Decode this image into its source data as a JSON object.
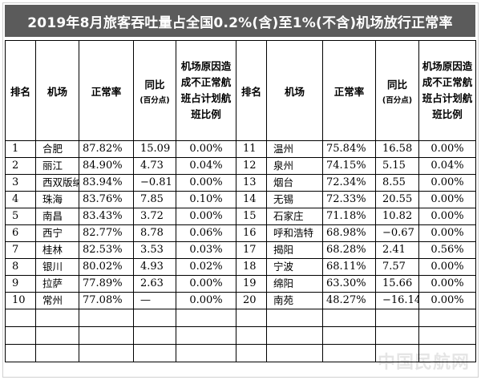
{
  "title": "2019年8月旅客吞吐量占全国0.2%(含)至1%(不含)机场放行正常率",
  "headers": {
    "rank": "排名",
    "airport": "机场",
    "rate": "正常率",
    "yoy": "同比",
    "yoy_unit": "(百分点)",
    "ratio": "机场原因造成不正常航班占计划航班比例"
  },
  "rows": [
    {
      "left": {
        "rank": "1",
        "airport": "合肥",
        "rate": "87.82%",
        "yoy": "15.09",
        "ratio": "0.00%"
      },
      "right": {
        "rank": "11",
        "airport": "温州",
        "rate": "75.84%",
        "yoy": "16.58",
        "ratio": "0.00%"
      }
    },
    {
      "left": {
        "rank": "2",
        "airport": "丽江",
        "rate": "84.90%",
        "yoy": "4.73",
        "ratio": "0.04%"
      },
      "right": {
        "rank": "12",
        "airport": "泉州",
        "rate": "74.15%",
        "yoy": "5.15",
        "ratio": "0.04%"
      }
    },
    {
      "left": {
        "rank": "3",
        "airport": "西双版纳",
        "rate": "83.94%",
        "yoy": "−0.81",
        "ratio": "0.00%"
      },
      "right": {
        "rank": "13",
        "airport": "烟台",
        "rate": "72.34%",
        "yoy": "8.55",
        "ratio": "0.00%"
      }
    },
    {
      "left": {
        "rank": "4",
        "airport": "珠海",
        "rate": "83.76%",
        "yoy": "7.85",
        "ratio": "0.10%"
      },
      "right": {
        "rank": "14",
        "airport": "无锡",
        "rate": "72.33%",
        "yoy": "20.55",
        "ratio": "0.00%"
      }
    },
    {
      "left": {
        "rank": "5",
        "airport": "南昌",
        "rate": "83.43%",
        "yoy": "3.72",
        "ratio": "0.00%"
      },
      "right": {
        "rank": "15",
        "airport": "石家庄",
        "rate": "71.18%",
        "yoy": "10.82",
        "ratio": "0.00%"
      }
    },
    {
      "left": {
        "rank": "6",
        "airport": "西宁",
        "rate": "82.77%",
        "yoy": "8.78",
        "ratio": "0.06%"
      },
      "right": {
        "rank": "16",
        "airport": "呼和浩特",
        "rate": "68.98%",
        "yoy": "−0.67",
        "ratio": "0.00%"
      }
    },
    {
      "left": {
        "rank": "7",
        "airport": "桂林",
        "rate": "82.53%",
        "yoy": "3.53",
        "ratio": "0.03%"
      },
      "right": {
        "rank": "17",
        "airport": "揭阳",
        "rate": "68.28%",
        "yoy": "2.41",
        "ratio": "0.56%"
      }
    },
    {
      "left": {
        "rank": "8",
        "airport": "银川",
        "rate": "80.02%",
        "yoy": "4.93",
        "ratio": "0.02%"
      },
      "right": {
        "rank": "18",
        "airport": "宁波",
        "rate": "68.11%",
        "yoy": "7.57",
        "ratio": "0.00%"
      }
    },
    {
      "left": {
        "rank": "9",
        "airport": "拉萨",
        "rate": "77.89%",
        "yoy": "2.63",
        "ratio": "0.00%"
      },
      "right": {
        "rank": "19",
        "airport": "绵阳",
        "rate": "63.30%",
        "yoy": "15.66",
        "ratio": "0.00%"
      }
    },
    {
      "left": {
        "rank": "10",
        "airport": "常州",
        "rate": "77.08%",
        "yoy": "—",
        "ratio": "0.00%"
      },
      "right": {
        "rank": "20",
        "airport": "南苑",
        "rate": "48.27%",
        "yoy": "−16.14",
        "ratio": "0.00%"
      }
    }
  ],
  "watermark": "中国民航网"
}
